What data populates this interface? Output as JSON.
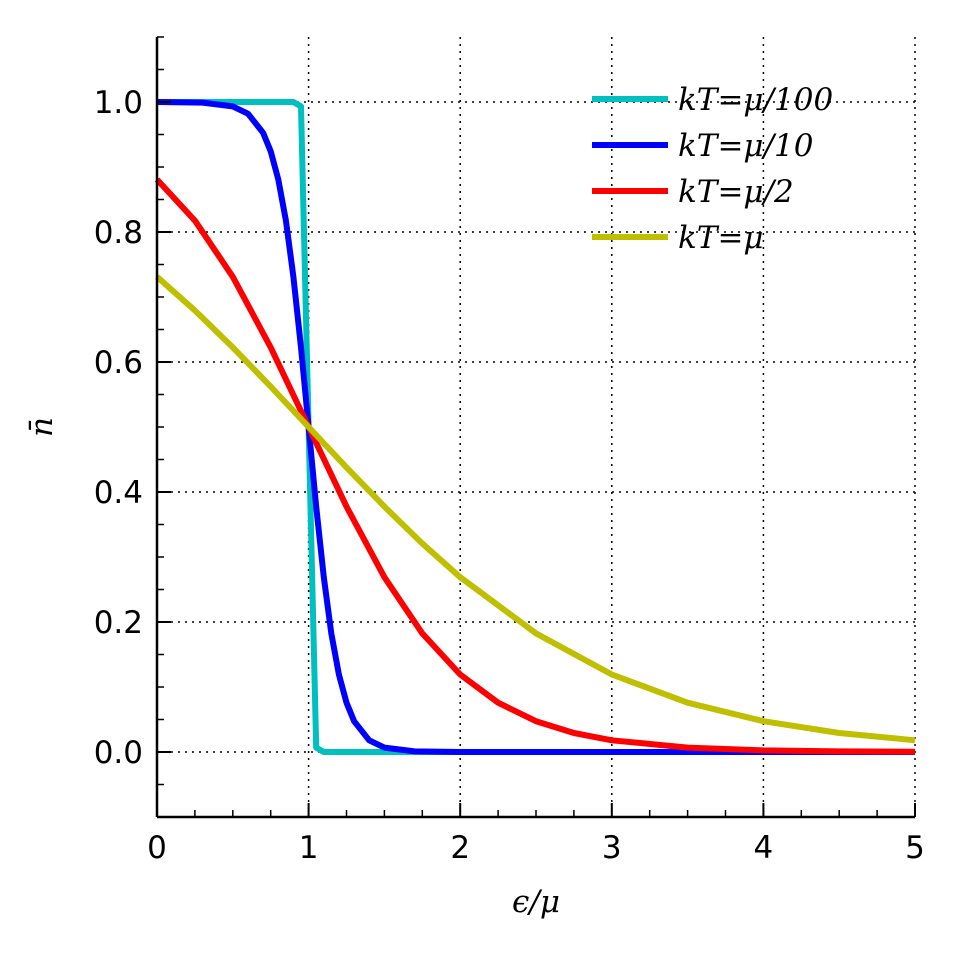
{
  "chart_data": {
    "type": "line",
    "title": "",
    "xlabel": "ϵ/μ",
    "ylabel": "n̄",
    "xlim": [
      0,
      5
    ],
    "ylim": [
      -0.1,
      1.1
    ],
    "xticks": [
      "0",
      "1",
      "2",
      "3",
      "4",
      "5"
    ],
    "yticks": [
      "0.0",
      "0.2",
      "0.4",
      "0.6",
      "0.8",
      "1.0"
    ],
    "grid": true,
    "grid_style": "dotted",
    "legend_placement": "top-right",
    "series": [
      {
        "name": "kT=μ/100",
        "color": "#00bfbf",
        "x": [
          0,
          0.9,
          0.95,
          1.0,
          1.05,
          1.1,
          5
        ],
        "y": [
          1.0,
          1.0,
          0.9933,
          0.5,
          0.0067,
          0.0,
          0.0
        ]
      },
      {
        "name": "kT=μ/10",
        "color": "#0000ff",
        "x": [
          0,
          0.3,
          0.5,
          0.6,
          0.7,
          0.75,
          0.8,
          0.85,
          0.9,
          0.95,
          1.0,
          1.05,
          1.1,
          1.15,
          1.2,
          1.25,
          1.3,
          1.4,
          1.5,
          1.7,
          2.0,
          5
        ],
        "y": [
          1.0,
          0.9991,
          0.9933,
          0.982,
          0.9526,
          0.9241,
          0.8808,
          0.8176,
          0.7311,
          0.6225,
          0.5,
          0.3775,
          0.2689,
          0.1824,
          0.1192,
          0.0759,
          0.0474,
          0.018,
          0.0067,
          0.0009,
          0.0,
          0.0
        ]
      },
      {
        "name": "kT=μ/2",
        "color": "#ff0000",
        "x": [
          0,
          0.25,
          0.5,
          0.75,
          1.0,
          1.25,
          1.5,
          1.75,
          2.0,
          2.25,
          2.5,
          2.75,
          3.0,
          3.5,
          4.0,
          4.5,
          5.0
        ],
        "y": [
          0.8808,
          0.8176,
          0.7311,
          0.6225,
          0.5,
          0.3775,
          0.2689,
          0.1824,
          0.1192,
          0.0759,
          0.0474,
          0.0293,
          0.018,
          0.0067,
          0.0025,
          0.0009,
          0.0003
        ]
      },
      {
        "name": "kT=μ",
        "color": "#bfbf00",
        "x": [
          0,
          0.25,
          0.5,
          0.75,
          1.0,
          1.25,
          1.5,
          1.75,
          2.0,
          2.5,
          3.0,
          3.5,
          4.0,
          4.5,
          5.0
        ],
        "y": [
          0.7311,
          0.6792,
          0.6225,
          0.5622,
          0.5,
          0.4378,
          0.3775,
          0.3208,
          0.2689,
          0.1824,
          0.1192,
          0.0759,
          0.0474,
          0.0293,
          0.018
        ]
      }
    ]
  }
}
